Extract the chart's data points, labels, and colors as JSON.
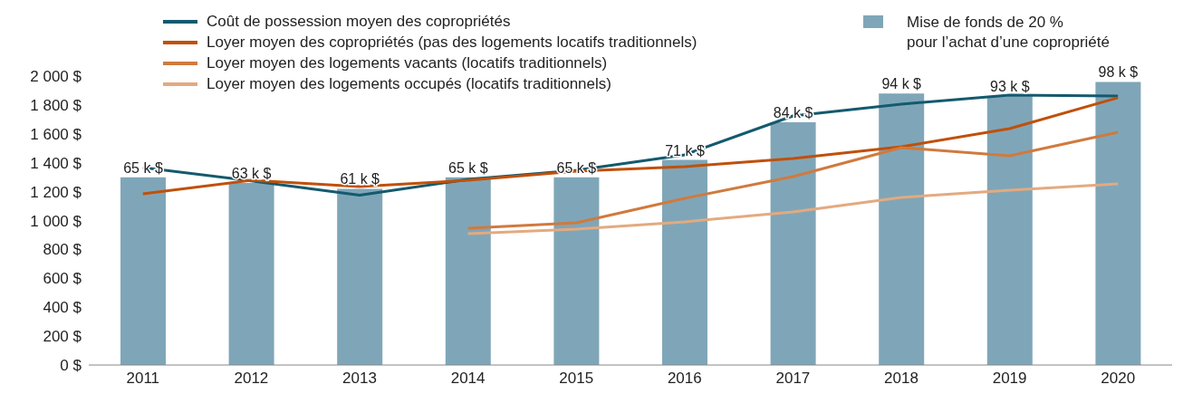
{
  "chart_data": {
    "type": "line",
    "categories": [
      "2011",
      "2012",
      "2013",
      "2014",
      "2015",
      "2016",
      "2017",
      "2018",
      "2019",
      "2020"
    ],
    "series": [
      {
        "name": "Mise de fonds de 20 %\npour l’achat d’une copropriété",
        "type": "bar",
        "axis": "y2",
        "color": "#7fa6b8",
        "values": [
          65,
          63,
          61,
          65,
          65,
          71,
          84,
          94,
          93,
          98
        ],
        "value_labels": [
          "65 k $",
          "63 k $",
          "61 k $",
          "65 k $",
          "65 k $",
          "71 k $",
          "84 k $",
          "94 k $",
          "93 k $",
          "98 k $"
        ]
      },
      {
        "name": "Coût de possession moyen des copropriétés",
        "color": "#145a6e",
        "values": [
          1367,
          1275,
          1175,
          1285,
          1348,
          1455,
          1724,
          1806,
          1868,
          1862
        ]
      },
      {
        "name": "Loyer moyen des copropriétés (pas des logements locatifs traditionnels)",
        "color": "#c0500a",
        "values": [
          1185,
          1279,
          1235,
          1279,
          1342,
          1373,
          1430,
          1511,
          1636,
          1850
        ]
      },
      {
        "name": "Loyer moyen des logements vacants (locatifs traditionnels)",
        "color": "#d07a3e",
        "values": [
          null,
          null,
          null,
          947,
          984,
          1154,
          1304,
          1505,
          1448,
          1611
        ]
      },
      {
        "name": "Loyer moyen des logements occupés (locatifs traditionnels)",
        "color": "#e3aa80",
        "values": [
          null,
          null,
          null,
          909,
          940,
          991,
          1060,
          1160,
          1210,
          1254
        ]
      }
    ],
    "ylim": [
      0,
      2000
    ],
    "yticks": [
      {
        "value": 0,
        "label": "0 $"
      },
      {
        "value": 200,
        "label": "200 $"
      },
      {
        "value": 400,
        "label": "400 $"
      },
      {
        "value": 600,
        "label": "600 $"
      },
      {
        "value": 800,
        "label": "800 $"
      },
      {
        "value": 1000,
        "label": "1 000 $"
      },
      {
        "value": 1200,
        "label": "1 200 $"
      },
      {
        "value": 1400,
        "label": "1 400 $"
      },
      {
        "value": 1600,
        "label": "1 600 $"
      },
      {
        "value": 1800,
        "label": "1 800 $"
      },
      {
        "value": 2000,
        "label": "2 000 $"
      }
    ],
    "grid": false,
    "legend": "top",
    "marker": "none",
    "line_style": "solid"
  }
}
